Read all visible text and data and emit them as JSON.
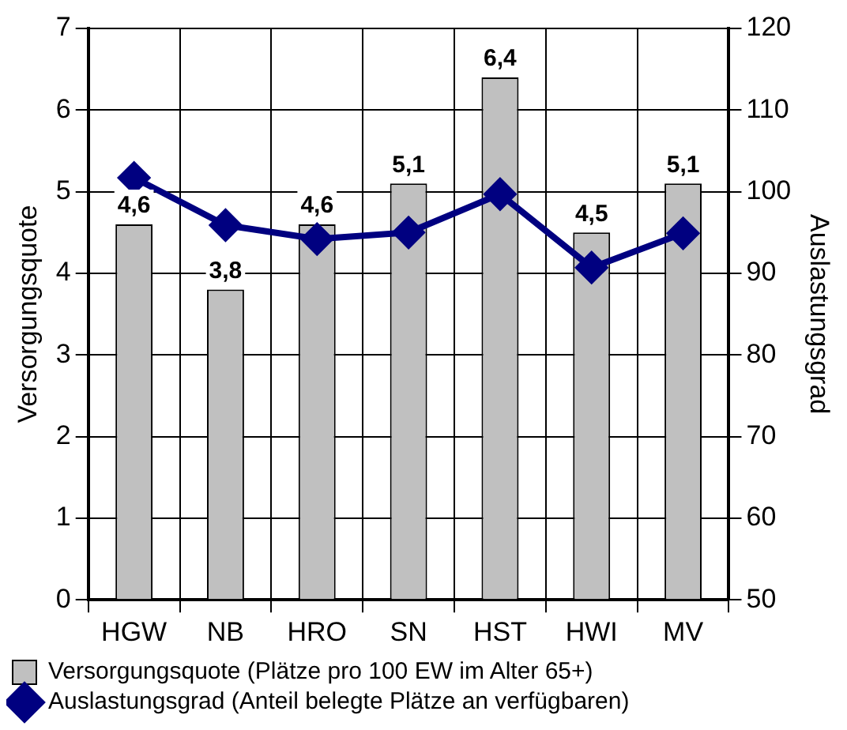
{
  "chart_data": {
    "type": "bar",
    "categories": [
      "HGW",
      "NB",
      "HRO",
      "SN",
      "HST",
      "HWI",
      "MV"
    ],
    "ylabel": "Versorgungsquote",
    "y2label": "Auslastungsgrad",
    "ylim": [
      0,
      7
    ],
    "yticks": [
      0,
      1,
      2,
      3,
      4,
      5,
      6,
      7
    ],
    "y2lim": [
      50,
      120
    ],
    "y2ticks": [
      50,
      60,
      70,
      80,
      90,
      100,
      110,
      120
    ],
    "grid": true,
    "legend": "bottom",
    "marker": "diamond",
    "line_style": "solid",
    "series": [
      {
        "name": "Versorgungsquote (Plätze pro 100 EW im Alter 65+)",
        "color": "#c0c0c0",
        "values": [
          4.6,
          3.8,
          4.6,
          5.1,
          6.4,
          4.5,
          5.1
        ],
        "value_labels": [
          "4,6",
          "3,8",
          "4,6",
          "5,1",
          "6,4",
          "4,5",
          "5,1"
        ]
      },
      {
        "name": "Auslastungsgrad (Anteil belegte Plätze an verfügbaren)",
        "type": "line",
        "axis": "y2",
        "color": "#000080",
        "values": [
          101.7,
          95.9,
          94.2,
          95,
          99.7,
          90.7,
          94.9
        ]
      }
    ]
  }
}
